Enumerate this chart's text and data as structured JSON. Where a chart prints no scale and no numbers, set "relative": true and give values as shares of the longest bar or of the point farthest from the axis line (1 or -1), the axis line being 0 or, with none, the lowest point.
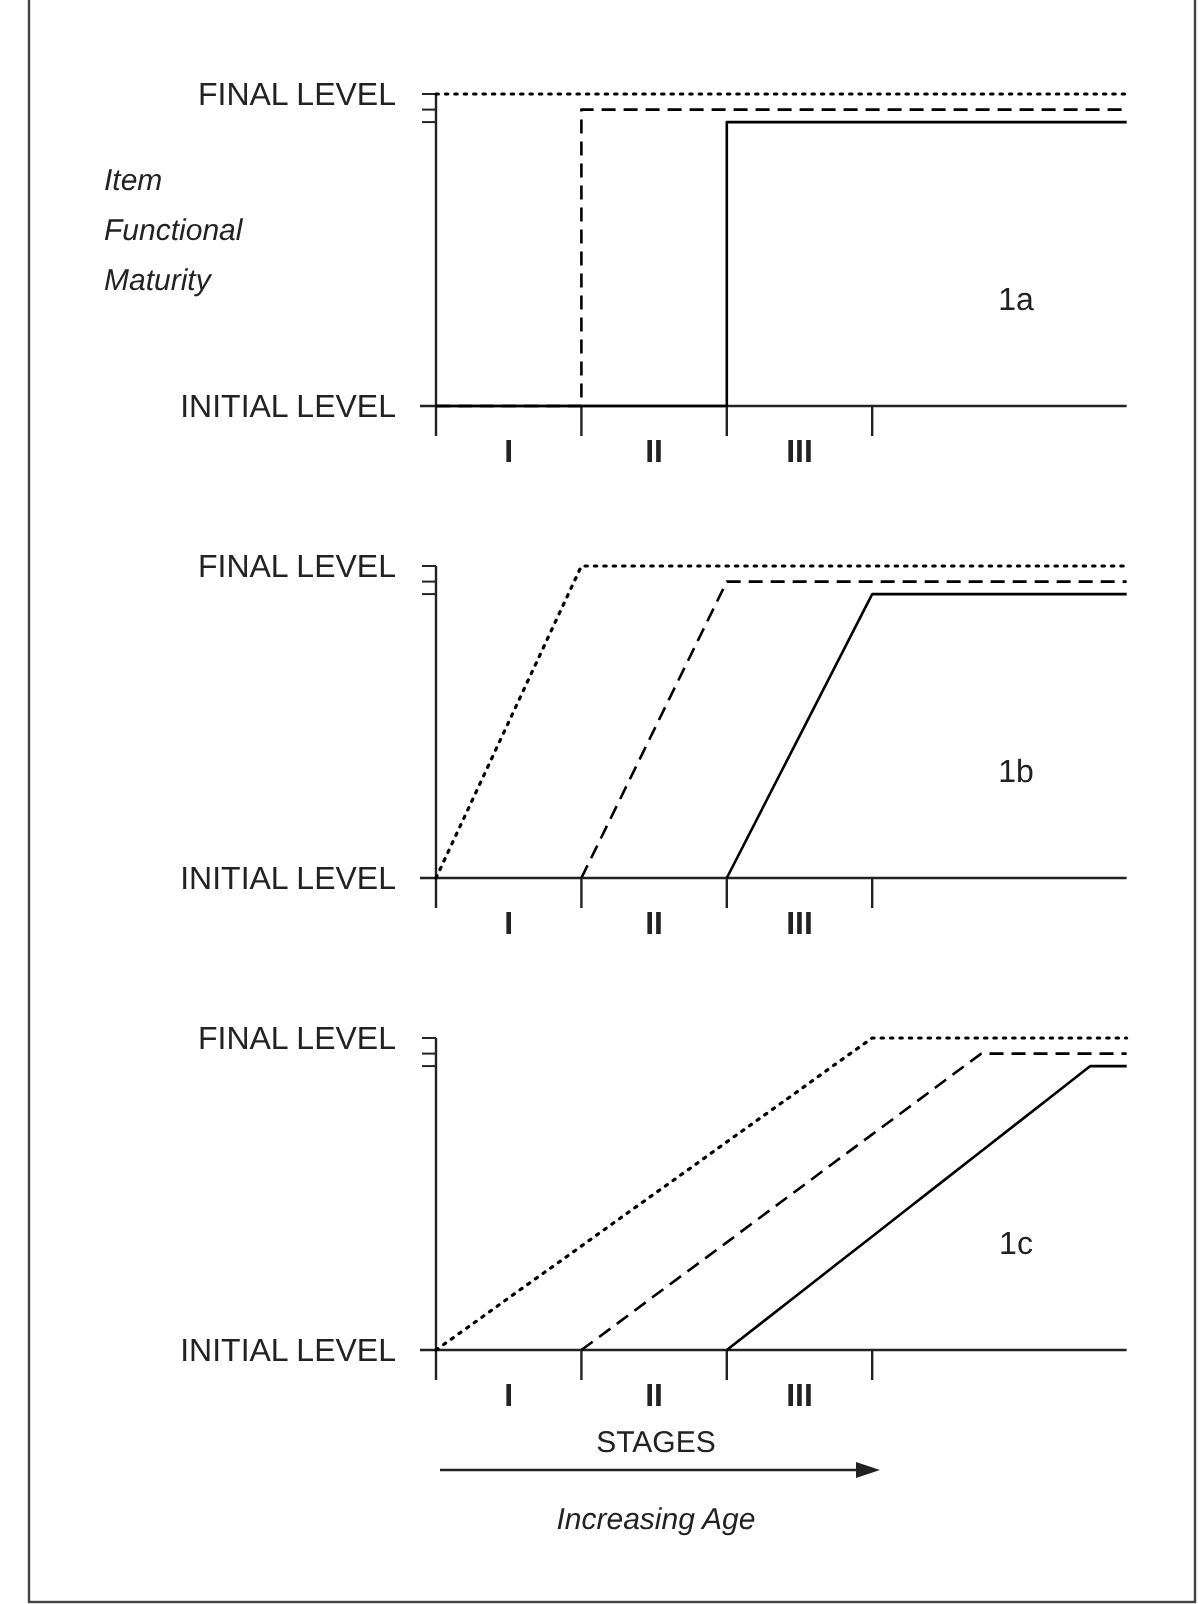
{
  "chart_data": [
    {
      "type": "step",
      "relative": true,
      "title": "1a",
      "ylabel": "Item Functional Maturity",
      "categories": [
        null,
        null,
        "I",
        null,
        null,
        null,
        "II",
        null,
        null,
        null,
        "III",
        null,
        null,
        null,
        null,
        null,
        null,
        null,
        null,
        null
      ],
      "annotations": [
        "FINAL LEVEL",
        "INITIAL LEVEL"
      ],
      "series": [
        {
          "color": "#000000",
          "line_style": "dotted",
          "values": [
            1,
            1,
            1,
            1,
            1,
            1,
            1,
            1,
            1,
            1,
            1,
            1,
            1,
            1,
            1,
            1,
            1,
            1,
            1,
            1
          ]
        },
        {
          "color": "#000000",
          "line_style": "dashed",
          "values": [
            0,
            0,
            0,
            0,
            0.95,
            0.95,
            0.95,
            0.95,
            0.95,
            0.95,
            0.95,
            0.95,
            0.95,
            0.95,
            0.95,
            0.95,
            0.95,
            0.95,
            0.95,
            0.95
          ]
        },
        {
          "color": "#000000",
          "line_style": "solid",
          "values": [
            0,
            0,
            0,
            0,
            0,
            0,
            0,
            0,
            0.91,
            0.91,
            0.91,
            0.91,
            0.91,
            0.91,
            0.91,
            0.91,
            0.91,
            0.91,
            0.91,
            0.91
          ]
        }
      ]
    },
    {
      "type": "line",
      "relative": true,
      "title": "1b",
      "categories": [
        null,
        null,
        "I",
        null,
        null,
        null,
        "II",
        null,
        null,
        null,
        "III",
        null,
        null,
        null,
        null,
        null,
        null,
        null,
        null,
        null
      ],
      "annotations": [
        "FINAL LEVEL",
        "INITIAL LEVEL"
      ],
      "series": [
        {
          "color": "#000000",
          "line_style": "dotted",
          "values": [
            0,
            0.25,
            0.5,
            0.75,
            1,
            1,
            1,
            1,
            1,
            1,
            1,
            1,
            1,
            1,
            1,
            1,
            1,
            1,
            1,
            1
          ]
        },
        {
          "color": "#000000",
          "line_style": "dashed",
          "values": [
            null,
            null,
            null,
            null,
            0,
            0.2375,
            0.475,
            0.7125,
            0.95,
            0.95,
            0.95,
            0.95,
            0.95,
            0.95,
            0.95,
            0.95,
            0.95,
            0.95,
            0.95,
            0.95
          ]
        },
        {
          "color": "#000000",
          "line_style": "solid",
          "values": [
            null,
            null,
            null,
            null,
            null,
            null,
            null,
            null,
            0,
            0.2275,
            0.455,
            0.6825,
            0.91,
            0.91,
            0.91,
            0.91,
            0.91,
            0.91,
            0.91,
            0.91
          ]
        }
      ]
    },
    {
      "type": "line",
      "relative": true,
      "title": "1c",
      "xlabel": "STAGES",
      "categories": [
        null,
        null,
        "I",
        null,
        null,
        null,
        "II",
        null,
        null,
        null,
        "III",
        null,
        null,
        null,
        null,
        null,
        null,
        null,
        null,
        null
      ],
      "annotations": [
        "FINAL LEVEL",
        "INITIAL LEVEL",
        "Increasing Age"
      ],
      "series": [
        {
          "color": "#000000",
          "line_style": "dotted",
          "values": [
            0,
            0.083,
            0.167,
            0.25,
            0.333,
            0.417,
            0.5,
            0.583,
            0.667,
            0.75,
            0.833,
            0.917,
            1,
            1,
            1,
            1,
            1,
            1,
            1,
            1
          ]
        },
        {
          "color": "#000000",
          "line_style": "dashed",
          "values": [
            null,
            null,
            null,
            null,
            0,
            0.086,
            0.173,
            0.259,
            0.345,
            0.432,
            0.518,
            0.605,
            0.691,
            0.777,
            0.864,
            0.95,
            0.95,
            0.95,
            0.95,
            0.95
          ]
        },
        {
          "color": "#000000",
          "line_style": "solid",
          "values": [
            null,
            null,
            null,
            null,
            null,
            null,
            null,
            null,
            0,
            0.091,
            0.182,
            0.273,
            0.364,
            0.455,
            0.546,
            0.637,
            0.728,
            0.819,
            0.91,
            0.91
          ]
        }
      ]
    }
  ]
}
